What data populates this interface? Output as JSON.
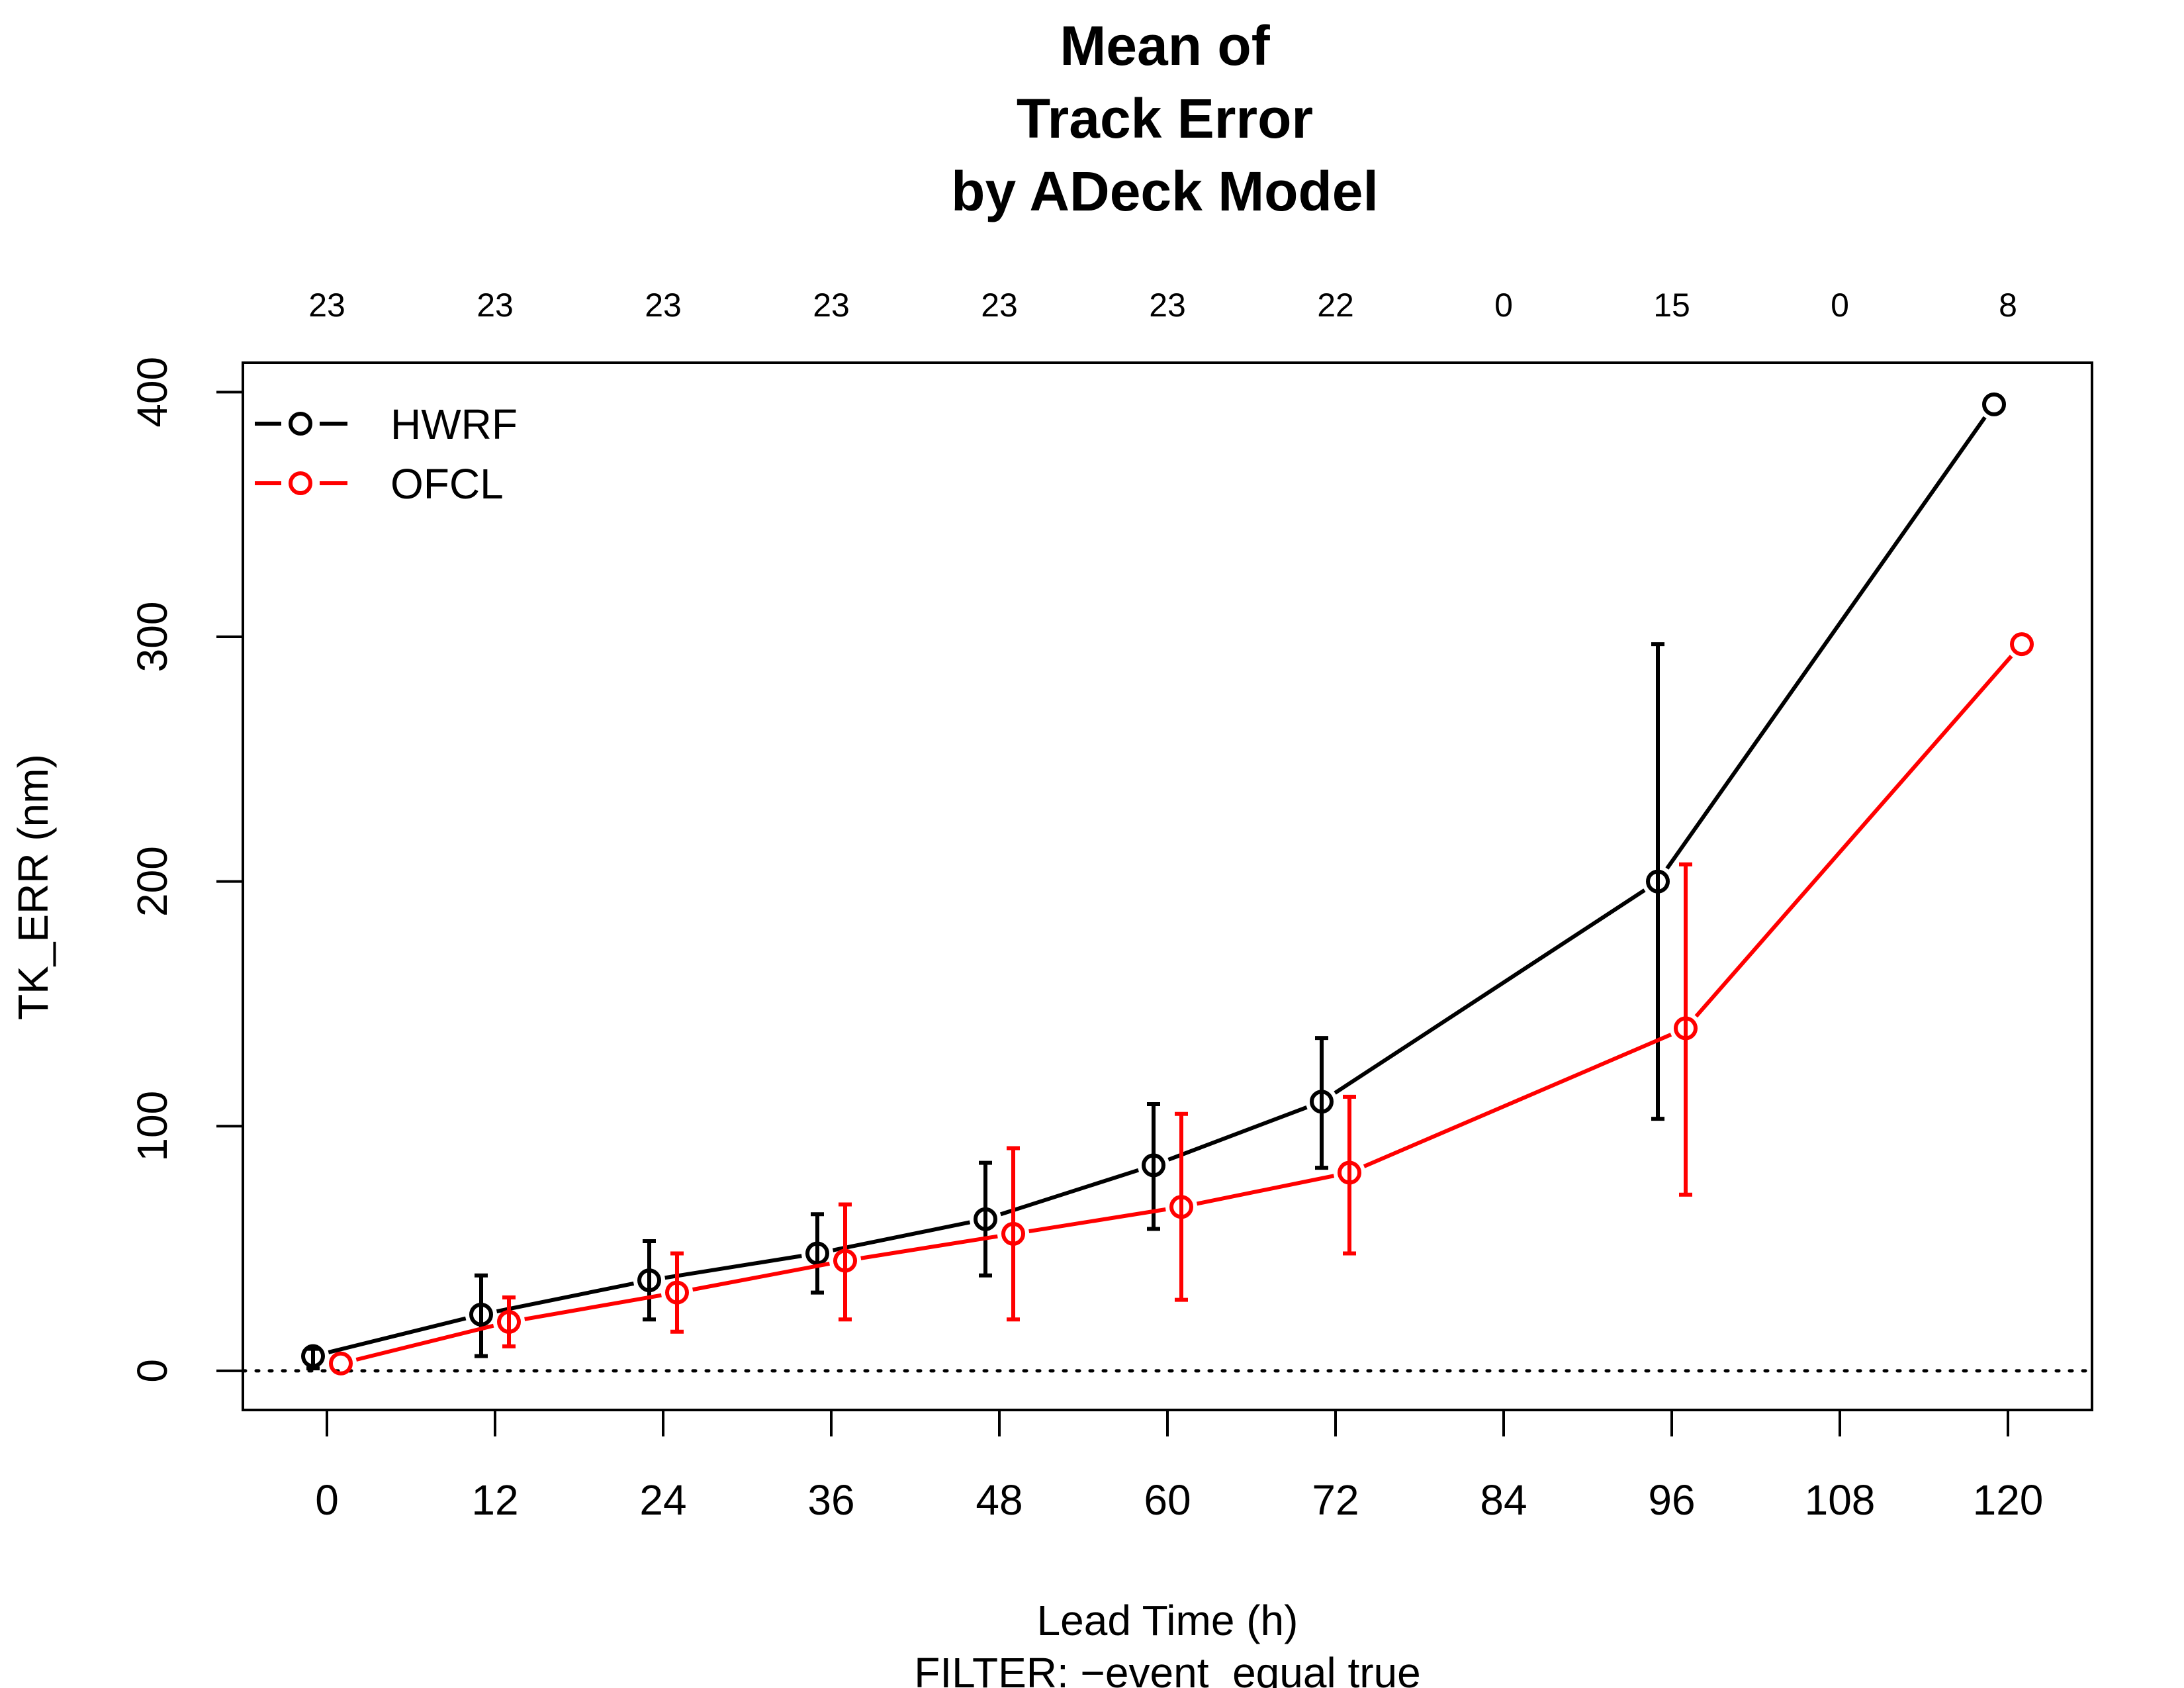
{
  "chart_data": {
    "type": "line",
    "title_lines": [
      "Mean of",
      "Track Error",
      "by ADeck Model"
    ],
    "xlabel": "Lead Time (h)",
    "subtitle": "FILTER:  −event_equal true",
    "ylabel": "TK_ERR (nm)",
    "x_ticks": [
      "0",
      "12",
      "24",
      "36",
      "48",
      "60",
      "72",
      "84",
      "96",
      "108",
      "120"
    ],
    "x_values": [
      0,
      12,
      24,
      36,
      48,
      60,
      72,
      84,
      96,
      108,
      120
    ],
    "y_ticks": [
      "0",
      "100",
      "200",
      "300",
      "400"
    ],
    "y_tick_values": [
      0,
      100,
      200,
      300,
      400
    ],
    "xlim": [
      -6,
      126
    ],
    "ylim": [
      -16,
      412
    ],
    "counts": [
      "23",
      "23",
      "23",
      "23",
      "23",
      "23",
      "22",
      "0",
      "15",
      "0",
      "8"
    ],
    "reference_line": 0,
    "legend_position": "top-left",
    "series": [
      {
        "name": "HWRF",
        "color": "#000000",
        "x": [
          0,
          12,
          24,
          36,
          48,
          60,
          72,
          96,
          120
        ],
        "values": [
          6,
          23,
          37,
          48,
          62,
          84,
          110,
          200,
          395
        ],
        "lower": [
          1,
          6,
          21,
          32,
          39,
          58,
          83,
          103,
          null
        ],
        "upper": [
          9,
          39,
          53,
          64,
          85,
          109,
          136,
          297,
          null
        ],
        "offset": -1
      },
      {
        "name": "OFCL",
        "color": "#ff0000",
        "x": [
          0,
          12,
          24,
          36,
          48,
          60,
          72,
          96,
          120
        ],
        "values": [
          3,
          20,
          32,
          45,
          56,
          67,
          81,
          140,
          297
        ],
        "lower": [
          null,
          10,
          16,
          21,
          21,
          29,
          48,
          72,
          null
        ],
        "upper": [
          null,
          30,
          48,
          68,
          91,
          105,
          112,
          207,
          null
        ],
        "offset": 1
      }
    ]
  }
}
